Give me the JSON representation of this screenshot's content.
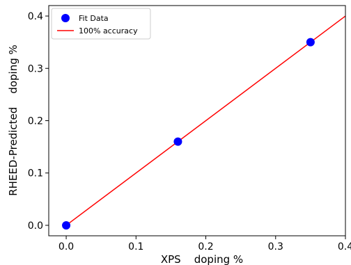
{
  "chart_data": {
    "type": "scatter",
    "xlabel": "XPS    doping %",
    "ylabel": "RHEED-Predicted    doping %",
    "xlim": [
      -0.025,
      0.4
    ],
    "ylim": [
      -0.02,
      0.42
    ],
    "x_ticks": [
      "0.0",
      "0.1",
      "0.2",
      "0.3",
      "0.4"
    ],
    "y_ticks": [
      "0.0",
      "0.1",
      "0.2",
      "0.3",
      "0.4"
    ],
    "grid": false,
    "legend_position": "top-left",
    "series": [
      {
        "name": "Fit Data",
        "kind": "scatter",
        "color": "#0000ff",
        "x": [
          0.0,
          0.16,
          0.35
        ],
        "y": [
          0.0,
          0.16,
          0.35
        ]
      },
      {
        "name": "100% accuracy",
        "kind": "line",
        "color": "#ff0000",
        "x": [
          0.0,
          0.4
        ],
        "y": [
          0.0,
          0.4
        ]
      }
    ]
  }
}
